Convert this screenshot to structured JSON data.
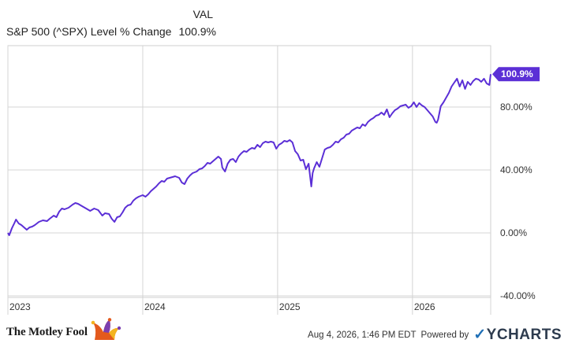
{
  "legend": {
    "header": "VAL",
    "series_name": "S&P 500 (^SPX) Level % Change",
    "series_value": "100.9%"
  },
  "footer": {
    "brand": "The Motley Fool",
    "brand_logo_icon": "jester-hat-icon",
    "timestamp": "Aug 4, 2026, 1:46 PM EDT",
    "powered_by": "Powered by",
    "provider": "YCHARTS"
  },
  "chart_data": {
    "type": "line",
    "title": "",
    "xlabel": "",
    "ylabel": "",
    "grid": true,
    "line_color": "#5b2fd6",
    "x_ticks": [
      "2023",
      "2024",
      "2025",
      "2026"
    ],
    "x_tick_positions": [
      2023,
      2024,
      2025,
      2026
    ],
    "xlim": [
      2023.0,
      2026.58
    ],
    "y_ticks": [
      {
        "value": 80,
        "label": "80.00%"
      },
      {
        "value": 40,
        "label": "40.00%"
      },
      {
        "value": 0,
        "label": "0.00%"
      },
      {
        "value": -40,
        "label": "-40.00%"
      }
    ],
    "ylim": [
      -41,
      119
    ],
    "series": [
      {
        "name": "S&P 500 (^SPX) Level % Change",
        "end_label": "100.9%",
        "points": [
          [
            2023.0,
            0.0
          ],
          [
            2023.01,
            -1.5
          ],
          [
            2023.03,
            3.0
          ],
          [
            2023.05,
            6.5
          ],
          [
            2023.06,
            8.5
          ],
          [
            2023.08,
            6.0
          ],
          [
            2023.1,
            5.0
          ],
          [
            2023.12,
            3.5
          ],
          [
            2023.14,
            2.0
          ],
          [
            2023.16,
            3.5
          ],
          [
            2023.18,
            4.0
          ],
          [
            2023.2,
            5.0
          ],
          [
            2023.23,
            7.0
          ],
          [
            2023.26,
            8.0
          ],
          [
            2023.29,
            7.5
          ],
          [
            2023.31,
            9.0
          ],
          [
            2023.34,
            11.0
          ],
          [
            2023.36,
            10.0
          ],
          [
            2023.38,
            13.5
          ],
          [
            2023.4,
            15.5
          ],
          [
            2023.42,
            15.0
          ],
          [
            2023.45,
            16.0
          ],
          [
            2023.48,
            18.0
          ],
          [
            2023.5,
            19.0
          ],
          [
            2023.52,
            18.5
          ],
          [
            2023.55,
            17.0
          ],
          [
            2023.58,
            15.5
          ],
          [
            2023.61,
            14.0
          ],
          [
            2023.64,
            15.5
          ],
          [
            2023.67,
            14.5
          ],
          [
            2023.7,
            11.0
          ],
          [
            2023.72,
            12.5
          ],
          [
            2023.75,
            12.0
          ],
          [
            2023.77,
            9.0
          ],
          [
            2023.79,
            7.0
          ],
          [
            2023.81,
            10.0
          ],
          [
            2023.83,
            10.5
          ],
          [
            2023.85,
            13.0
          ],
          [
            2023.87,
            16.0
          ],
          [
            2023.89,
            17.5
          ],
          [
            2023.91,
            18.0
          ],
          [
            2023.93,
            20.5
          ],
          [
            2023.95,
            22.0
          ],
          [
            2023.97,
            23.0
          ],
          [
            2024.0,
            24.0
          ],
          [
            2024.02,
            23.0
          ],
          [
            2024.04,
            24.5
          ],
          [
            2024.06,
            26.5
          ],
          [
            2024.08,
            28.0
          ],
          [
            2024.1,
            29.5
          ],
          [
            2024.12,
            31.5
          ],
          [
            2024.14,
            33.0
          ],
          [
            2024.16,
            32.5
          ],
          [
            2024.18,
            34.5
          ],
          [
            2024.2,
            35.0
          ],
          [
            2024.22,
            35.5
          ],
          [
            2024.24,
            36.0
          ],
          [
            2024.27,
            35.0
          ],
          [
            2024.29,
            32.0
          ],
          [
            2024.31,
            31.0
          ],
          [
            2024.33,
            34.5
          ],
          [
            2024.35,
            36.5
          ],
          [
            2024.37,
            38.0
          ],
          [
            2024.4,
            39.0
          ],
          [
            2024.42,
            40.5
          ],
          [
            2024.44,
            41.0
          ],
          [
            2024.46,
            42.5
          ],
          [
            2024.48,
            44.5
          ],
          [
            2024.5,
            44.0
          ],
          [
            2024.52,
            45.5
          ],
          [
            2024.54,
            47.0
          ],
          [
            2024.56,
            48.5
          ],
          [
            2024.58,
            47.0
          ],
          [
            2024.59,
            41.5
          ],
          [
            2024.61,
            39.0
          ],
          [
            2024.63,
            44.0
          ],
          [
            2024.65,
            46.5
          ],
          [
            2024.67,
            47.0
          ],
          [
            2024.69,
            45.0
          ],
          [
            2024.71,
            48.5
          ],
          [
            2024.73,
            50.5
          ],
          [
            2024.75,
            52.0
          ],
          [
            2024.77,
            51.5
          ],
          [
            2024.79,
            53.0
          ],
          [
            2024.81,
            54.0
          ],
          [
            2024.83,
            53.5
          ],
          [
            2024.85,
            56.0
          ],
          [
            2024.87,
            54.5
          ],
          [
            2024.89,
            57.0
          ],
          [
            2024.91,
            58.0
          ],
          [
            2024.93,
            57.5
          ],
          [
            2024.95,
            58.0
          ],
          [
            2024.97,
            57.5
          ],
          [
            2024.99,
            53.5
          ],
          [
            2025.01,
            56.0
          ],
          [
            2025.03,
            57.0
          ],
          [
            2025.05,
            58.5
          ],
          [
            2025.07,
            58.0
          ],
          [
            2025.09,
            59.0
          ],
          [
            2025.11,
            57.5
          ],
          [
            2025.13,
            52.0
          ],
          [
            2025.15,
            50.0
          ],
          [
            2025.17,
            46.0
          ],
          [
            2025.19,
            46.5
          ],
          [
            2025.21,
            40.5
          ],
          [
            2025.23,
            44.0
          ],
          [
            2025.25,
            29.5
          ],
          [
            2025.26,
            38.0
          ],
          [
            2025.27,
            41.0
          ],
          [
            2025.29,
            45.0
          ],
          [
            2025.31,
            42.0
          ],
          [
            2025.33,
            47.5
          ],
          [
            2025.35,
            53.0
          ],
          [
            2025.37,
            54.0
          ],
          [
            2025.39,
            54.5
          ],
          [
            2025.41,
            56.0
          ],
          [
            2025.43,
            58.0
          ],
          [
            2025.45,
            57.5
          ],
          [
            2025.47,
            59.5
          ],
          [
            2025.49,
            60.5
          ],
          [
            2025.51,
            62.5
          ],
          [
            2025.53,
            63.0
          ],
          [
            2025.55,
            65.0
          ],
          [
            2025.57,
            66.0
          ],
          [
            2025.59,
            67.0
          ],
          [
            2025.61,
            66.5
          ],
          [
            2025.63,
            69.0
          ],
          [
            2025.65,
            68.0
          ],
          [
            2025.67,
            70.5
          ],
          [
            2025.69,
            72.0
          ],
          [
            2025.71,
            73.0
          ],
          [
            2025.73,
            74.5
          ],
          [
            2025.75,
            75.0
          ],
          [
            2025.77,
            76.5
          ],
          [
            2025.79,
            75.0
          ],
          [
            2025.81,
            78.5
          ],
          [
            2025.83,
            73.5
          ],
          [
            2025.85,
            76.0
          ],
          [
            2025.87,
            78.0
          ],
          [
            2025.89,
            79.0
          ],
          [
            2025.91,
            80.5
          ],
          [
            2025.93,
            81.0
          ],
          [
            2025.95,
            81.5
          ],
          [
            2025.97,
            79.5
          ],
          [
            2025.99,
            80.5
          ],
          [
            2026.01,
            83.0
          ],
          [
            2026.03,
            80.0
          ],
          [
            2026.05,
            82.5
          ],
          [
            2026.07,
            81.0
          ],
          [
            2026.09,
            80.0
          ],
          [
            2026.11,
            78.0
          ],
          [
            2026.13,
            76.0
          ],
          [
            2026.15,
            74.0
          ],
          [
            2026.17,
            70.5
          ],
          [
            2026.18,
            70.0
          ],
          [
            2026.19,
            72.0
          ],
          [
            2026.21,
            80.5
          ],
          [
            2026.23,
            83.0
          ],
          [
            2026.25,
            86.0
          ],
          [
            2026.27,
            89.0
          ],
          [
            2026.29,
            93.0
          ],
          [
            2026.31,
            95.5
          ],
          [
            2026.33,
            98.0
          ],
          [
            2026.35,
            93.0
          ],
          [
            2026.37,
            97.0
          ],
          [
            2026.39,
            91.5
          ],
          [
            2026.41,
            96.0
          ],
          [
            2026.43,
            94.0
          ],
          [
            2026.45,
            96.5
          ],
          [
            2026.47,
            98.0
          ],
          [
            2026.49,
            97.5
          ],
          [
            2026.51,
            96.0
          ],
          [
            2026.53,
            98.0
          ],
          [
            2026.55,
            95.0
          ],
          [
            2026.57,
            94.0
          ],
          [
            2026.58,
            100.9
          ]
        ]
      }
    ]
  }
}
